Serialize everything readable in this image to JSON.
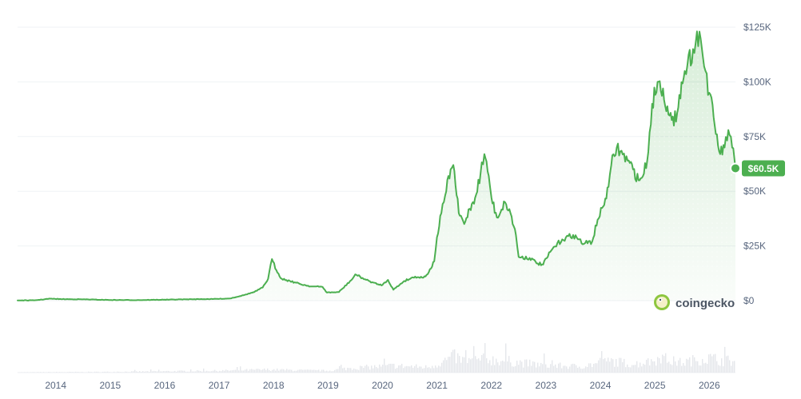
{
  "chart_data": {
    "type": "area",
    "title": "",
    "xlabel": "",
    "ylabel": "",
    "x_ticks": [
      "2014",
      "2015",
      "2016",
      "2017",
      "2018",
      "2019",
      "2020",
      "2021",
      "2022",
      "2023",
      "2024",
      "2025",
      "2026"
    ],
    "y_ticks": [
      "$125K",
      "$100K",
      "$75K",
      "$50K",
      "$25K",
      "$0"
    ],
    "ylim": [
      0,
      125000
    ],
    "xlim": [
      2013.3,
      2026.48
    ],
    "grid": true,
    "legend": "none",
    "series": [
      {
        "values_unit": "USD",
        "x": [
          2013.3,
          2013.6,
          2013.9,
          2014.1,
          2014.5,
          2015.0,
          2015.5,
          2016.0,
          2016.5,
          2016.9,
          2017.2,
          2017.45,
          2017.65,
          2017.8,
          2017.9,
          2017.97,
          2018.05,
          2018.15,
          2018.3,
          2018.5,
          2018.7,
          2018.9,
          2018.98,
          2019.2,
          2019.45,
          2019.5,
          2019.7,
          2019.9,
          2020.0,
          2020.1,
          2020.2,
          2020.4,
          2020.6,
          2020.75,
          2020.85,
          2020.95,
          2021.0,
          2021.08,
          2021.15,
          2021.25,
          2021.3,
          2021.4,
          2021.5,
          2021.6,
          2021.7,
          2021.8,
          2021.87,
          2021.95,
          2022.0,
          2022.1,
          2022.25,
          2022.35,
          2022.45,
          2022.5,
          2022.7,
          2022.85,
          2022.95,
          2023.1,
          2023.3,
          2023.5,
          2023.7,
          2023.85,
          2023.95,
          2024.05,
          2024.15,
          2024.2,
          2024.3,
          2024.5,
          2024.6,
          2024.7,
          2024.8,
          2024.88,
          2024.95,
          2025.05,
          2025.15,
          2025.25,
          2025.35,
          2025.45,
          2025.55,
          2025.6,
          2025.7,
          2025.75,
          2025.82,
          2025.88,
          2025.93,
          2026.0,
          2026.1,
          2026.2,
          2026.28,
          2026.35,
          2026.42,
          2026.48
        ],
        "values": [
          110,
          130,
          900,
          700,
          600,
          300,
          250,
          430,
          650,
          750,
          1000,
          2500,
          4000,
          6000,
          10000,
          19000,
          14000,
          10000,
          9000,
          7500,
          6500,
          6300,
          3700,
          3900,
          10000,
          12000,
          9500,
          7500,
          7200,
          9500,
          5000,
          9000,
          11000,
          10500,
          13000,
          18000,
          29000,
          40000,
          48000,
          60000,
          62000,
          40000,
          35000,
          42000,
          47000,
          58000,
          67000,
          57000,
          47000,
          38000,
          45000,
          40000,
          30000,
          20000,
          19500,
          17000,
          16500,
          23000,
          28000,
          30000,
          26000,
          27000,
          37000,
          43000,
          52000,
          62000,
          70000,
          64000,
          60000,
          55000,
          58000,
          68000,
          90000,
          100000,
          97000,
          85000,
          80000,
          94000,
          105000,
          108000,
          115000,
          118000,
          123000,
          112000,
          105000,
          95000,
          80000,
          67000,
          70000,
          78000,
          70000,
          60500
        ]
      }
    ],
    "current_value_label": "$60.5K",
    "line_color": "#4caf50",
    "area_color": "#4caf50",
    "badge_color": "#4caf50",
    "grid_color": "#eff2f5",
    "volume": {
      "color": "#e5e7eb",
      "x": [
        2013.3,
        2015.0,
        2017.0,
        2017.9,
        2018.5,
        2019.0,
        2019.4,
        2020.0,
        2020.2,
        2020.8,
        2021.0,
        2021.3,
        2021.5,
        2021.9,
        2022.3,
        2022.5,
        2022.9,
        2023.2,
        2023.6,
        2024.0,
        2024.2,
        2024.6,
        2024.9,
        2025.1,
        2025.3,
        2025.5,
        2025.8,
        2026.0,
        2026.2,
        2026.48
      ],
      "values": [
        0.01,
        0.02,
        0.05,
        0.08,
        0.06,
        0.05,
        0.12,
        0.16,
        0.18,
        0.14,
        0.22,
        0.42,
        0.3,
        0.35,
        0.3,
        0.26,
        0.2,
        0.18,
        0.16,
        0.25,
        0.3,
        0.22,
        0.28,
        0.4,
        0.3,
        0.26,
        0.35,
        0.38,
        0.32,
        0.3
      ]
    }
  },
  "brand": {
    "name": "coingecko",
    "icon": "coingecko-logo-icon"
  }
}
